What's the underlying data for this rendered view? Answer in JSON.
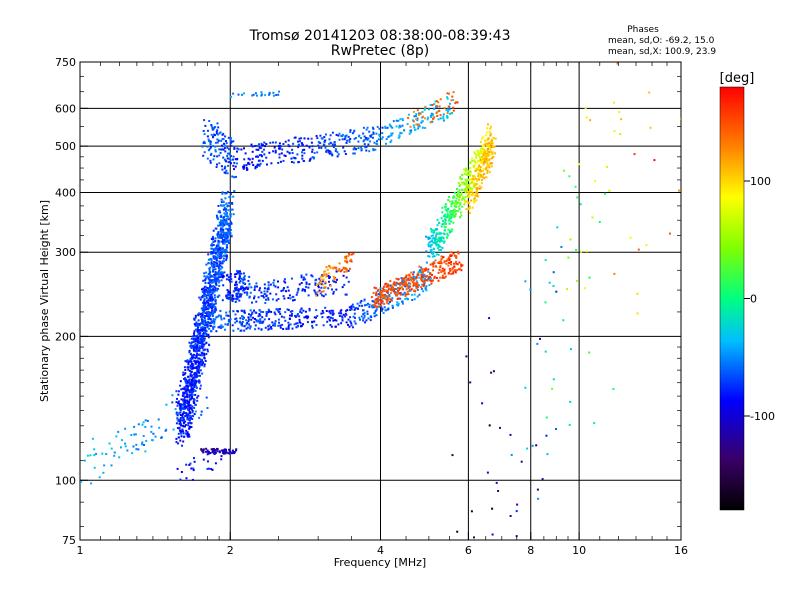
{
  "chart_data": {
    "type": "scatter",
    "title": "Tromsø 20141203 08:38:00-08:39:43",
    "subtitle": "RwPretec (8p)",
    "stats": {
      "heading": "Phases",
      "line_o": "mean, sd,O: -69.2, 15.0",
      "line_x": "mean, sd,X: 100.9, 23.9"
    },
    "xlabel": "Frequency [MHz]",
    "ylabel": "Stationary phase Virtual Height [km]",
    "x_scale": "log",
    "y_scale": "log",
    "xlim": [
      1,
      16
    ],
    "ylim": [
      75,
      750
    ],
    "x_ticks": [
      {
        "value": 1,
        "label": "1"
      },
      {
        "value": 2,
        "label": "2"
      },
      {
        "value": 4,
        "label": "4"
      },
      {
        "value": 6,
        "label": "6"
      },
      {
        "value": 8,
        "label": "8"
      },
      {
        "value": 10,
        "label": "10"
      },
      {
        "value": 16,
        "label": "16"
      }
    ],
    "x_gridlines": [
      2,
      4,
      6,
      8,
      10
    ],
    "y_ticks": [
      {
        "value": 75,
        "label": "75"
      },
      {
        "value": 100,
        "label": "100"
      },
      {
        "value": 200,
        "label": "200"
      },
      {
        "value": 300,
        "label": "300"
      },
      {
        "value": 400,
        "label": "400"
      },
      {
        "value": 500,
        "label": "500"
      },
      {
        "value": 600,
        "label": "600"
      },
      {
        "value": 750,
        "label": "750"
      }
    ],
    "y_gridlines": [
      100,
      200,
      300,
      400,
      500,
      600
    ],
    "grid": true,
    "colorbar": {
      "label": "[deg]",
      "range": [
        -180,
        180
      ],
      "ticks": [
        {
          "value": 100,
          "label": "100"
        },
        {
          "value": 0,
          "label": "0"
        },
        {
          "value": -100,
          "label": "-100"
        }
      ]
    },
    "traces": [
      {
        "x0": 1.78,
        "x1": 2.05,
        "y0": 520,
        "y1": 470,
        "phase0": -65,
        "phase1": -70,
        "spread": 0.1,
        "n": 130
      },
      {
        "x0": 2.05,
        "x1": 4.0,
        "y0": 470,
        "y1": 520,
        "phase0": -85,
        "phase1": -60,
        "spread": 0.06,
        "n": 280
      },
      {
        "x0": 4.0,
        "x1": 5.6,
        "y0": 525,
        "y1": 610,
        "phase0": -50,
        "phase1": -30,
        "spread": 0.05,
        "n": 110
      },
      {
        "x0": 4.6,
        "x1": 5.8,
        "y0": 560,
        "y1": 640,
        "phase0": 130,
        "phase1": 150,
        "spread": 0.05,
        "n": 40
      },
      {
        "x0": 5.0,
        "x1": 6.7,
        "y0": 300,
        "y1": 520,
        "phase0": -40,
        "phase1": 110,
        "spread": 0.07,
        "n": 420
      },
      {
        "x0": 6.0,
        "x1": 6.7,
        "y0": 380,
        "y1": 500,
        "phase0": 100,
        "phase1": 115,
        "spread": 0.06,
        "n": 160
      },
      {
        "x0": 1.6,
        "x1": 1.98,
        "y0": 130,
        "y1": 370,
        "phase0": -85,
        "phase1": -60,
        "spread": 0.1,
        "n": 1300
      },
      {
        "x0": 1.95,
        "x1": 2.2,
        "y0": 250,
        "y1": 260,
        "phase0": -80,
        "phase1": -70,
        "spread": 0.07,
        "n": 110
      },
      {
        "x0": 1.85,
        "x1": 3.5,
        "y0": 215,
        "y1": 220,
        "phase0": -65,
        "phase1": -85,
        "spread": 0.05,
        "n": 280
      },
      {
        "x0": 2.05,
        "x1": 3.5,
        "y0": 245,
        "y1": 260,
        "phase0": -70,
        "phase1": -80,
        "spread": 0.06,
        "n": 160
      },
      {
        "x0": 3.5,
        "x1": 5.0,
        "y0": 220,
        "y1": 265,
        "phase0": -70,
        "phase1": -40,
        "spread": 0.06,
        "n": 230
      },
      {
        "x0": 3.0,
        "x1": 3.5,
        "y0": 255,
        "y1": 290,
        "phase0": 120,
        "phase1": 145,
        "spread": 0.05,
        "n": 70
      },
      {
        "x0": 3.9,
        "x1": 5.8,
        "y0": 240,
        "y1": 290,
        "phase0": 150,
        "phase1": 155,
        "spread": 0.05,
        "n": 300
      },
      {
        "x0": 1.0,
        "x1": 1.8,
        "y0": 105,
        "y1": 150,
        "phase0": -35,
        "phase1": -60,
        "spread": 0.1,
        "n": 90
      },
      {
        "x0": 1.75,
        "x1": 2.05,
        "y0": 115,
        "y1": 115,
        "phase0": -120,
        "phase1": -110,
        "spread": 0.012,
        "n": 60
      },
      {
        "x0": 1.55,
        "x1": 1.95,
        "y0": 102,
        "y1": 112,
        "phase0": -90,
        "phase1": -80,
        "spread": 0.05,
        "n": 25
      },
      {
        "x0": 2.0,
        "x1": 2.6,
        "y0": 640,
        "y1": 645,
        "phase0": -50,
        "phase1": -50,
        "spread": 0.01,
        "n": 22
      },
      {
        "x0": 6.2,
        "x1": 15.0,
        "y0": 80,
        "y1": 640,
        "phase0": -180,
        "phase1": 180,
        "spread": 0.6,
        "n": 110
      }
    ]
  }
}
